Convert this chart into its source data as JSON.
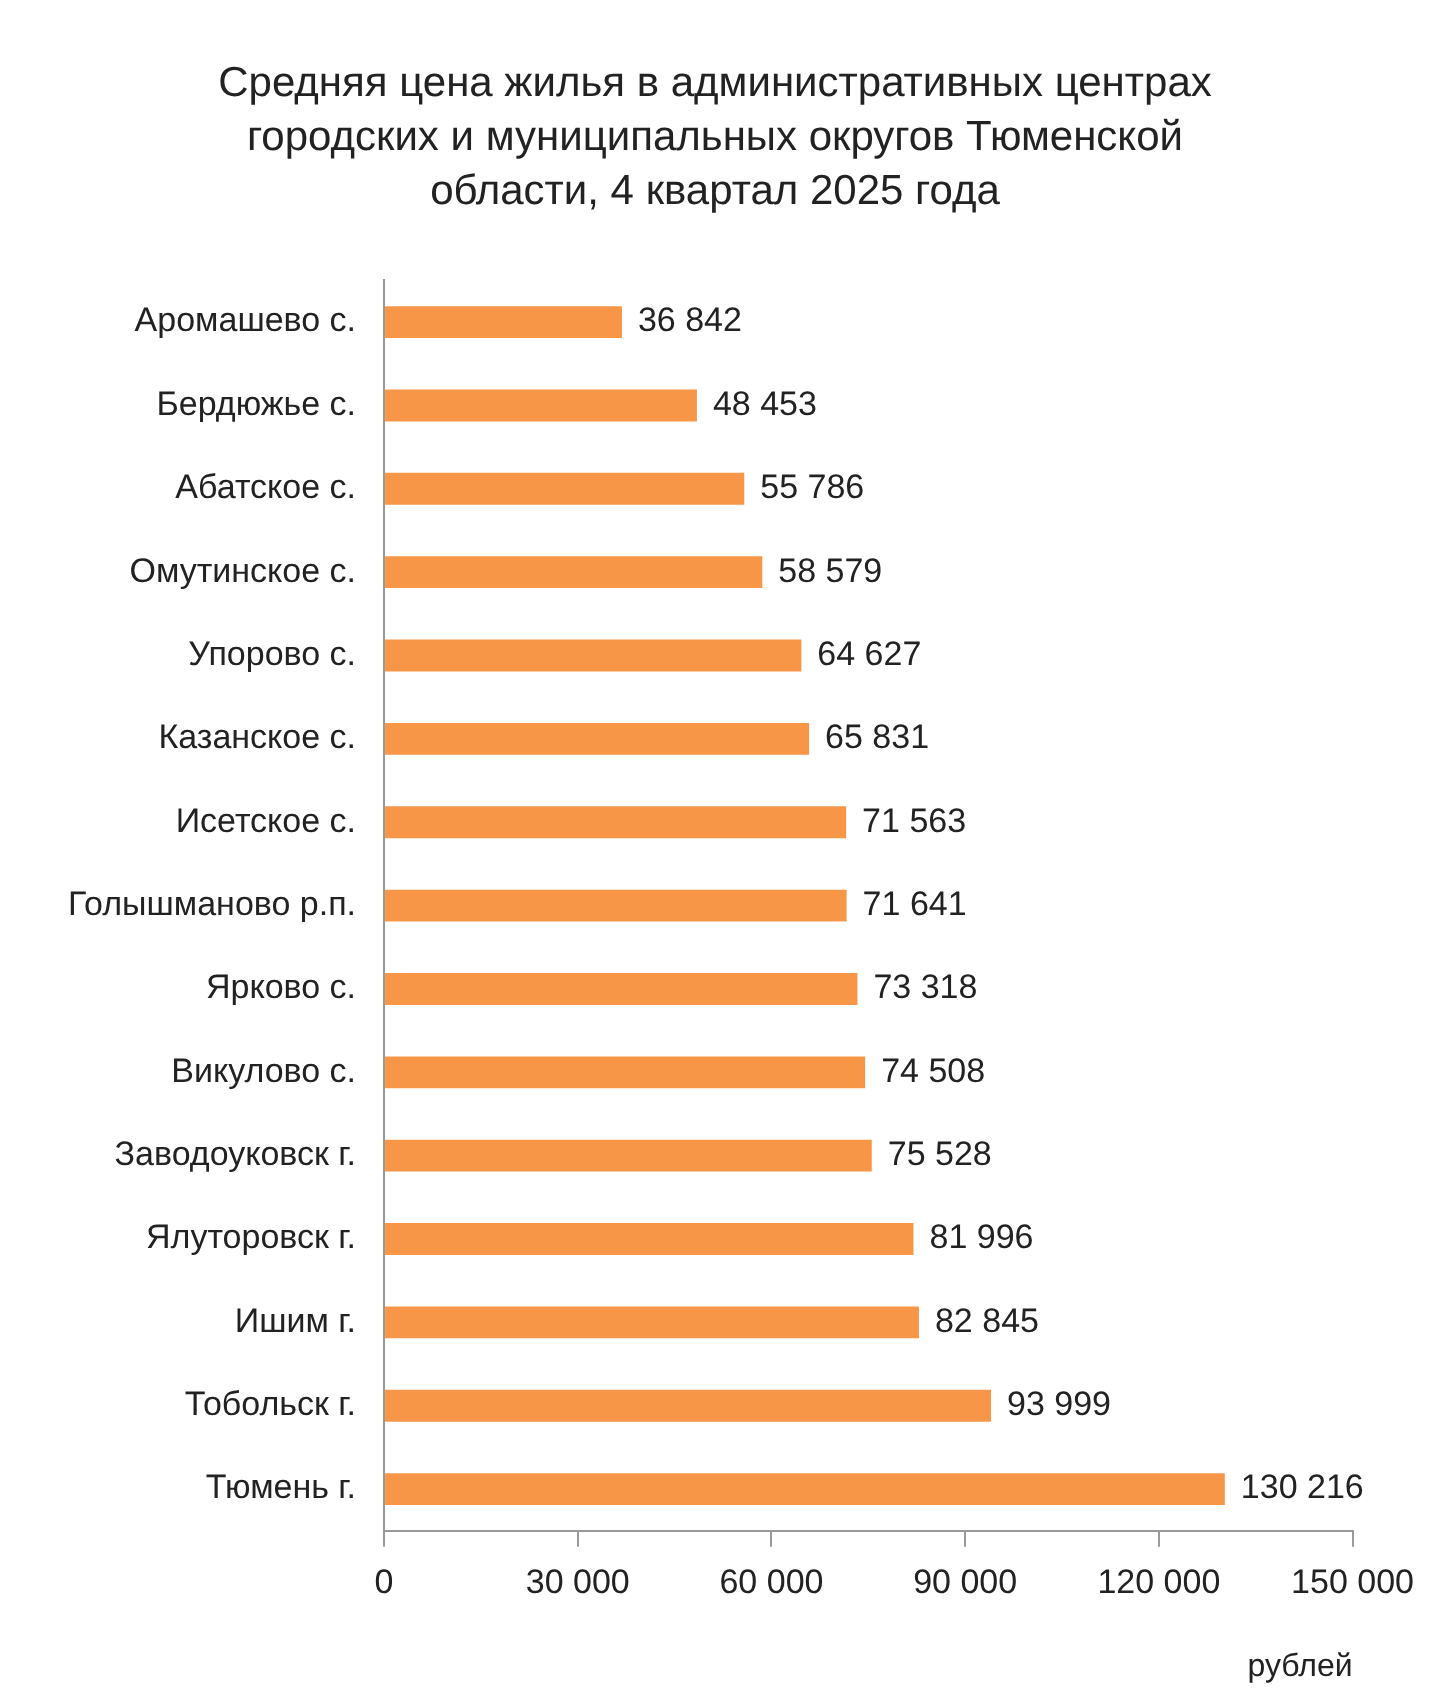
{
  "chart_data": {
    "type": "bar",
    "orientation": "horizontal",
    "title": "Средняя цена жилья в административных центрах городских и муниципальных округов Тюменской области, 4 квартал 2025 года",
    "xlabel": "рублей",
    "categories": [
      "Аромашево с.",
      "Бердюжье с.",
      "Абатское с.",
      "Омутинское с.",
      "Упорово с.",
      "Казанское с.",
      "Исетское с.",
      "Голышманово р.п.",
      "Ярково с.",
      "Викулово с.",
      "Заводоуковск г.",
      "Ялуторовск г.",
      "Ишим г.",
      "Тобольск г.",
      "Тюмень г."
    ],
    "values": [
      36842,
      48453,
      55786,
      58579,
      64627,
      65831,
      71563,
      71641,
      73318,
      74508,
      75528,
      81996,
      82845,
      93999,
      130216
    ],
    "value_labels": [
      "36 842",
      "48 453",
      "55 786",
      "58 579",
      "64 627",
      "65 831",
      "71 563",
      "71 641",
      "73 318",
      "74 508",
      "75 528",
      "81 996",
      "82 845",
      "93 999",
      "130 216"
    ],
    "color": "#f79646",
    "xlim": [
      0,
      150000
    ],
    "xticks": [
      0,
      {
        "value": 30000,
        "label": "30 000"
      },
      {
        "value": 60000,
        "label": "60 000"
      },
      {
        "value": 90000,
        "label": "90 000"
      },
      {
        "value": 120000,
        "label": "120 000"
      },
      {
        "value": 150000,
        "label": "150 000"
      }
    ],
    "grid": false,
    "legend": false
  }
}
